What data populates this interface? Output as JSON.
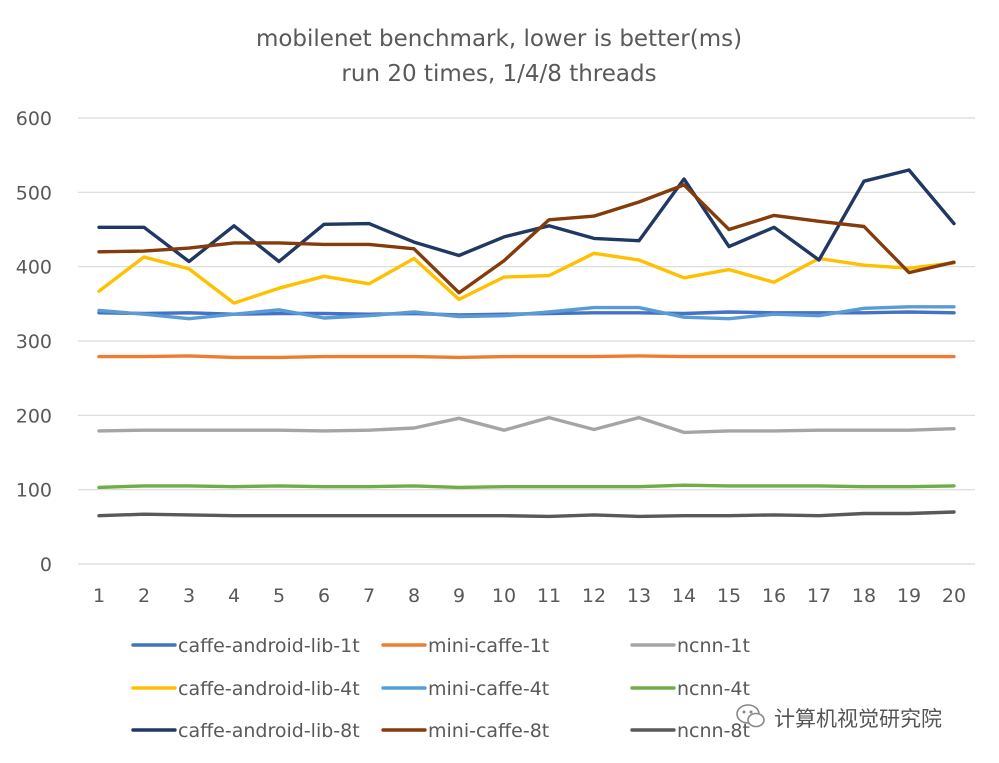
{
  "chart_data": {
    "type": "line",
    "title": "mobilenet benchmark, lower is better(ms)",
    "subtitle": "run 20 times, 1/4/8 threads",
    "xlabel": "",
    "ylabel": "",
    "ylim": [
      0,
      600
    ],
    "yticks": [
      0,
      100,
      200,
      300,
      400,
      500,
      600
    ],
    "x": [
      1,
      2,
      3,
      4,
      5,
      6,
      7,
      8,
      9,
      10,
      11,
      12,
      13,
      14,
      15,
      16,
      17,
      18,
      19,
      20
    ],
    "grid": "horizontal",
    "legend_position": "bottom",
    "series": [
      {
        "name": "caffe-android-lib-1t",
        "color": "#4472C4",
        "values": [
          338,
          337,
          338,
          336,
          337,
          337,
          336,
          337,
          335,
          336,
          337,
          338,
          338,
          337,
          339,
          338,
          338,
          338,
          339,
          338
        ]
      },
      {
        "name": "mini-caffe-1t",
        "color": "#ED7D31",
        "values": [
          279,
          279,
          280,
          278,
          278,
          279,
          279,
          279,
          278,
          279,
          279,
          279,
          280,
          279,
          279,
          279,
          279,
          279,
          279,
          279
        ]
      },
      {
        "name": "ncnn-1t",
        "color": "#A5A5A5",
        "values": [
          179,
          180,
          180,
          180,
          180,
          179,
          180,
          183,
          196,
          180,
          197,
          181,
          197,
          177,
          179,
          179,
          180,
          180,
          180,
          182
        ]
      },
      {
        "name": "caffe-android-lib-4t",
        "color": "#FFC000",
        "values": [
          367,
          413,
          397,
          351,
          371,
          387,
          377,
          411,
          356,
          386,
          388,
          418,
          409,
          385,
          396,
          379,
          411,
          402,
          398,
          405
        ]
      },
      {
        "name": "mini-caffe-4t",
        "color": "#5B9BD5",
        "values": [
          341,
          336,
          330,
          336,
          342,
          331,
          334,
          339,
          333,
          334,
          339,
          345,
          345,
          332,
          330,
          336,
          334,
          344,
          346,
          346
        ]
      },
      {
        "name": "ncnn-4t",
        "color": "#70AD47",
        "values": [
          103,
          105,
          105,
          104,
          105,
          104,
          104,
          105,
          103,
          104,
          104,
          104,
          104,
          106,
          105,
          105,
          105,
          104,
          104,
          105
        ]
      },
      {
        "name": "caffe-android-lib-8t",
        "color": "#203864",
        "values": [
          453,
          453,
          407,
          455,
          407,
          457,
          458,
          433,
          415,
          440,
          455,
          438,
          435,
          518,
          427,
          453,
          409,
          515,
          530,
          458
        ]
      },
      {
        "name": "mini-caffe-8t",
        "color": "#843C0C",
        "values": [
          420,
          421,
          425,
          432,
          432,
          430,
          430,
          424,
          365,
          408,
          463,
          468,
          487,
          510,
          450,
          469,
          461,
          454,
          392,
          406
        ]
      },
      {
        "name": "ncnn-8t",
        "color": "#595959",
        "values": [
          65,
          67,
          66,
          65,
          65,
          65,
          65,
          65,
          65,
          65,
          64,
          66,
          64,
          65,
          65,
          66,
          65,
          68,
          68,
          70
        ]
      }
    ]
  },
  "watermark": {
    "text": "计算机视觉研究院"
  }
}
